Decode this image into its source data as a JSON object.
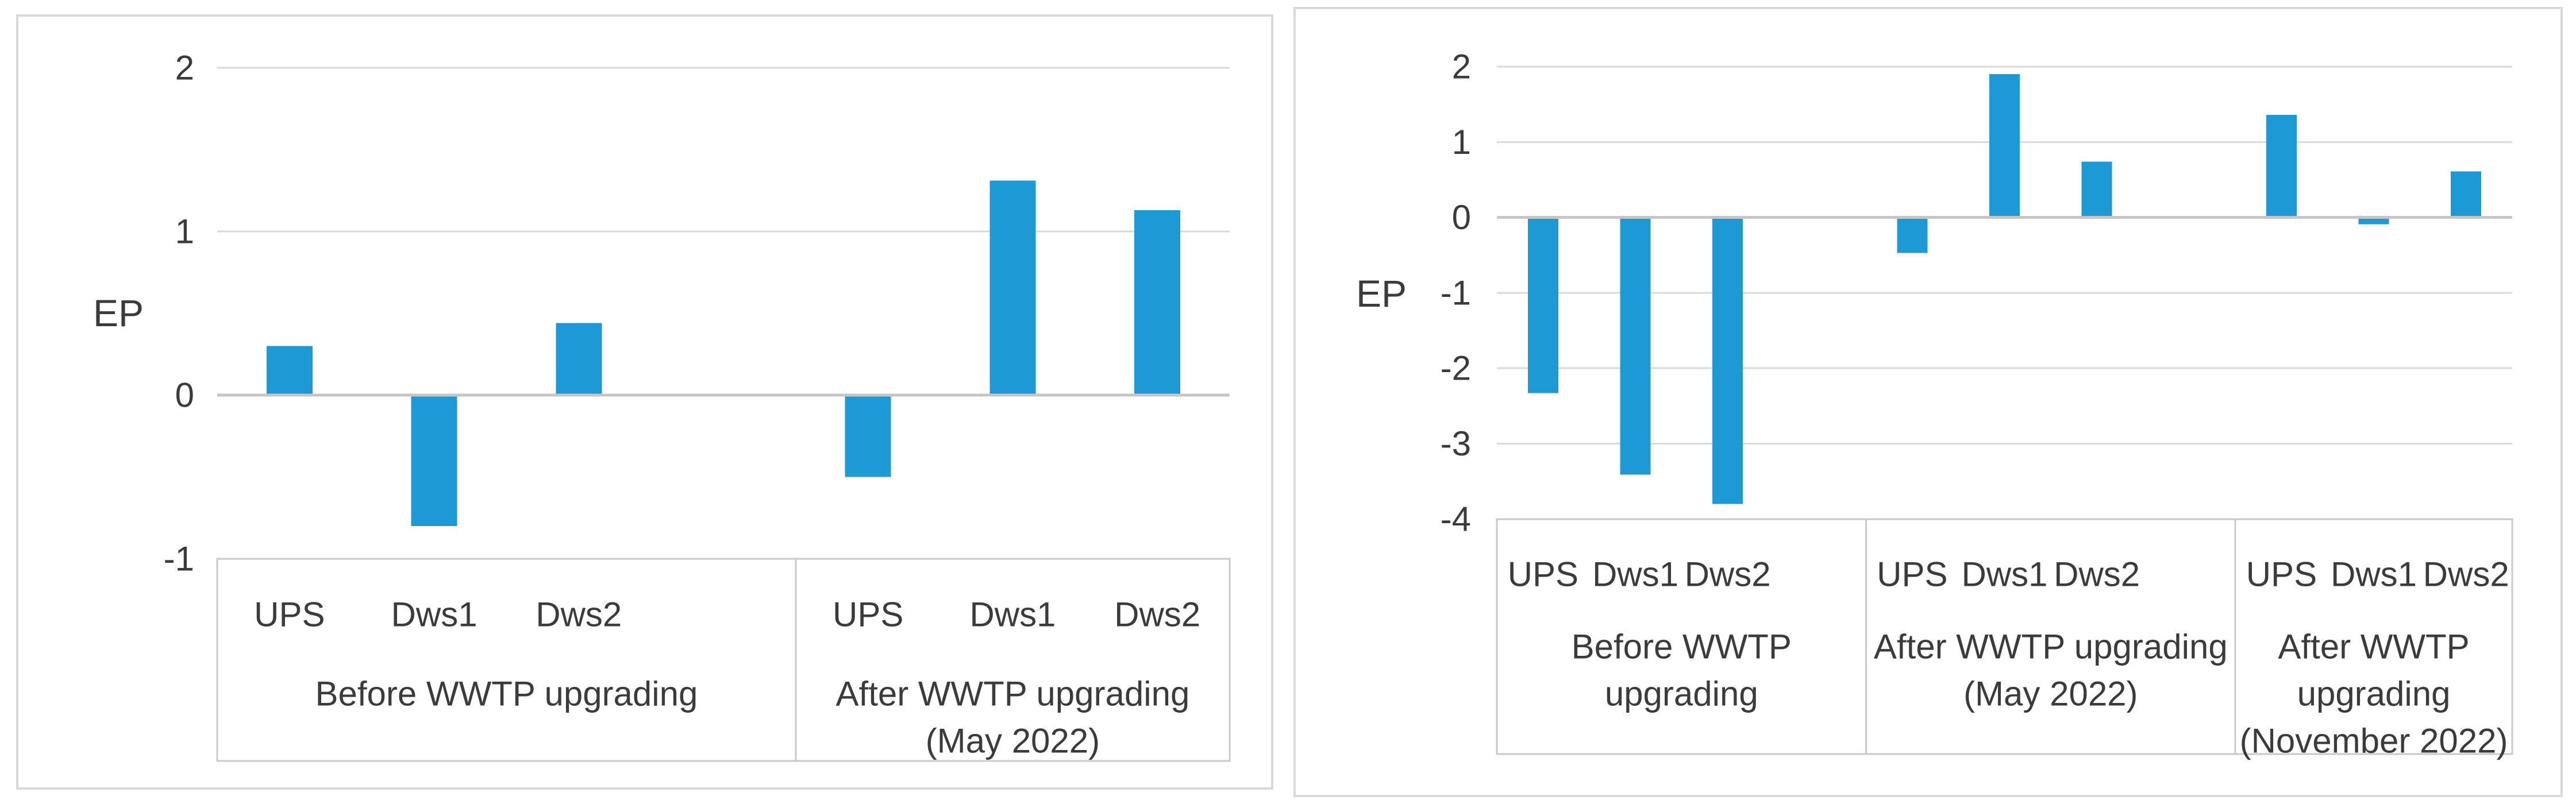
{
  "figure": {
    "description_labels": {
      "axis_title": "EP",
      "site_labels": [
        "UPS",
        "Dws1",
        "Dws2"
      ]
    },
    "colors": {
      "bar": "#1D9AD6",
      "gridline": "#D9D9D9",
      "zero_line": "#C6C6C6",
      "box_border": "#C9C9C9",
      "panel_border": "#D9D9D9",
      "text": "#3B3B3B",
      "background": "#FFFFFF"
    }
  },
  "chart_data": [
    {
      "type": "bar",
      "panel": "left",
      "title": "",
      "ylabel": "EP",
      "xlabel": "",
      "ylim": [
        -1,
        2
      ],
      "yticks": [
        "2",
        "1",
        "0",
        "-1"
      ],
      "ytick_values": [
        2,
        1,
        0,
        -1
      ],
      "grid": true,
      "legend_position": "none",
      "bar_color": "#1D9AD6",
      "categories": [
        "UPS",
        "Dws1",
        "Dws2"
      ],
      "groups": [
        {
          "label": "Before WWTP upgrading",
          "label_lines": [
            "Before WWTP upgrading"
          ],
          "categories": [
            "UPS",
            "Dws1",
            "Dws2"
          ],
          "values": [
            0.3,
            -0.8,
            0.44
          ]
        },
        {
          "label": "After WWTP upgrading (May 2022)",
          "label_lines": [
            "After WWTP upgrading",
            "(May 2022)"
          ],
          "categories": [
            "UPS",
            "Dws1",
            "Dws2"
          ],
          "values": [
            -0.5,
            1.31,
            1.13
          ]
        }
      ]
    },
    {
      "type": "bar",
      "panel": "right",
      "title": "",
      "ylabel": "EP",
      "xlabel": "",
      "ylim": [
        -4,
        2
      ],
      "yticks": [
        "2",
        "1",
        "0",
        "-1",
        "-2",
        "-3",
        "-4"
      ],
      "ytick_values": [
        2,
        1,
        0,
        -1,
        -2,
        -3,
        -4
      ],
      "grid": true,
      "legend_position": "none",
      "bar_color": "#1D9AD6",
      "categories": [
        "UPS",
        "Dws1",
        "Dws2"
      ],
      "groups": [
        {
          "label": "Before WWTP upgrading",
          "label_lines": [
            "Before WWTP",
            "upgrading"
          ],
          "categories": [
            "UPS",
            "Dws1",
            "Dws2"
          ],
          "values": [
            -2.33,
            -3.41,
            -3.8
          ]
        },
        {
          "label": "After WWTP upgrading (May 2022)",
          "label_lines": [
            "After WWTP upgrading",
            "(May 2022)"
          ],
          "categories": [
            "UPS",
            "Dws1",
            "Dws2"
          ],
          "values": [
            -0.47,
            1.9,
            0.74
          ]
        },
        {
          "label": "After WWTP upgrading (November 2022)",
          "label_lines": [
            "After WWTP",
            "upgrading",
            "(November 2022)"
          ],
          "categories": [
            "UPS",
            "Dws1",
            "Dws2"
          ],
          "values": [
            1.36,
            -0.09,
            0.61
          ]
        }
      ]
    }
  ]
}
